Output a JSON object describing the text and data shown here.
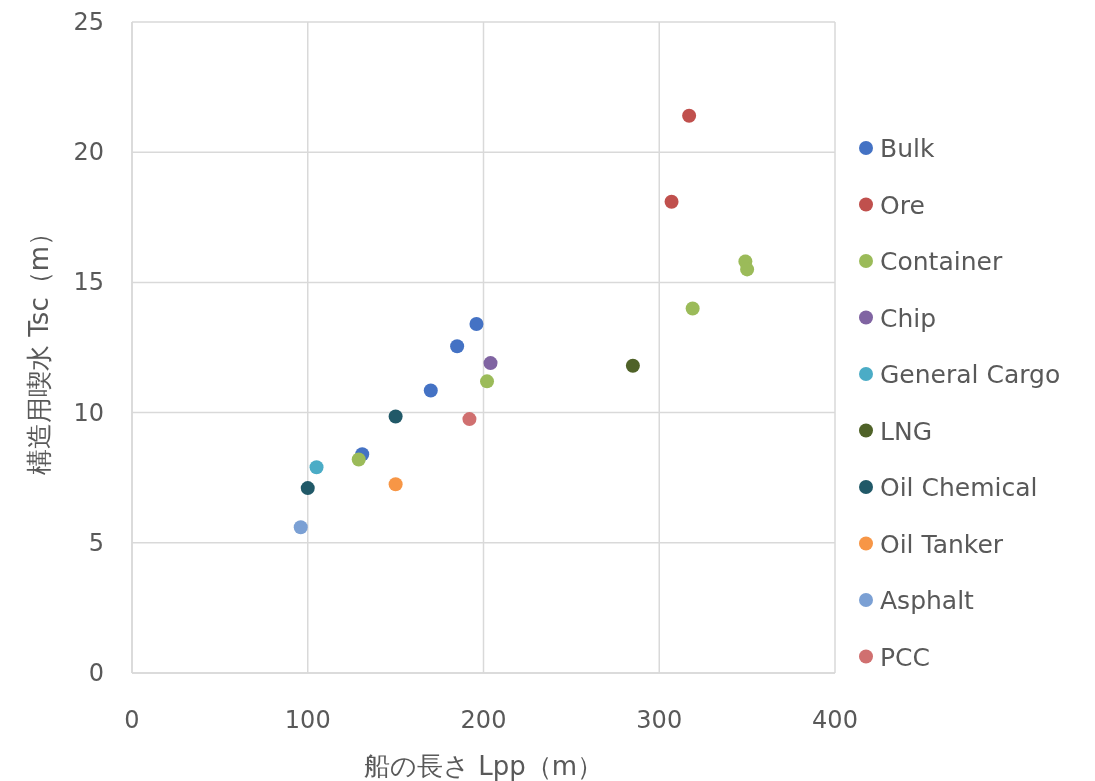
{
  "chart_data": {
    "type": "scatter",
    "xlabel": "船の長さ Lpp（m）",
    "ylabel": "構造用喫水 Tsc（m）",
    "xlim": [
      0,
      400
    ],
    "xticks": [
      0,
      100,
      200,
      300,
      400
    ],
    "ylim": [
      0,
      25
    ],
    "yticks": [
      0,
      5,
      10,
      15,
      20,
      25
    ],
    "grid": true,
    "legend": "right",
    "marker": "circle",
    "series": [
      {
        "name": "Bulk",
        "color": "#4472c4",
        "x": [
          131,
          170,
          185,
          196
        ],
        "values": [
          8.4,
          10.85,
          12.55,
          13.4
        ]
      },
      {
        "name": "Ore",
        "color": "#c0504d",
        "x": [
          307,
          317
        ],
        "values": [
          18.1,
          21.4
        ]
      },
      {
        "name": "Container",
        "color": "#9bbb59",
        "x": [
          129,
          202,
          319,
          349,
          350
        ],
        "values": [
          8.2,
          11.2,
          14.0,
          15.8,
          15.5
        ]
      },
      {
        "name": "Chip",
        "color": "#8064a2",
        "x": [
          204
        ],
        "values": [
          11.9
        ]
      },
      {
        "name": "General Cargo",
        "color": "#4bacc6",
        "x": [
          105
        ],
        "values": [
          7.9
        ]
      },
      {
        "name": "LNG",
        "color": "#4f6228",
        "x": [
          285
        ],
        "values": [
          11.8
        ]
      },
      {
        "name": "Oil Chemical",
        "color": "#215968",
        "x": [
          100,
          150
        ],
        "values": [
          7.1,
          9.85
        ]
      },
      {
        "name": "Oil Tanker",
        "color": "#f79646",
        "x": [
          150
        ],
        "values": [
          7.25
        ]
      },
      {
        "name": "Asphalt",
        "color": "#7ba0d4",
        "x": [
          96
        ],
        "values": [
          5.6
        ]
      },
      {
        "name": "PCC",
        "color": "#d07070",
        "x": [
          192
        ],
        "values": [
          9.75
        ]
      }
    ]
  }
}
